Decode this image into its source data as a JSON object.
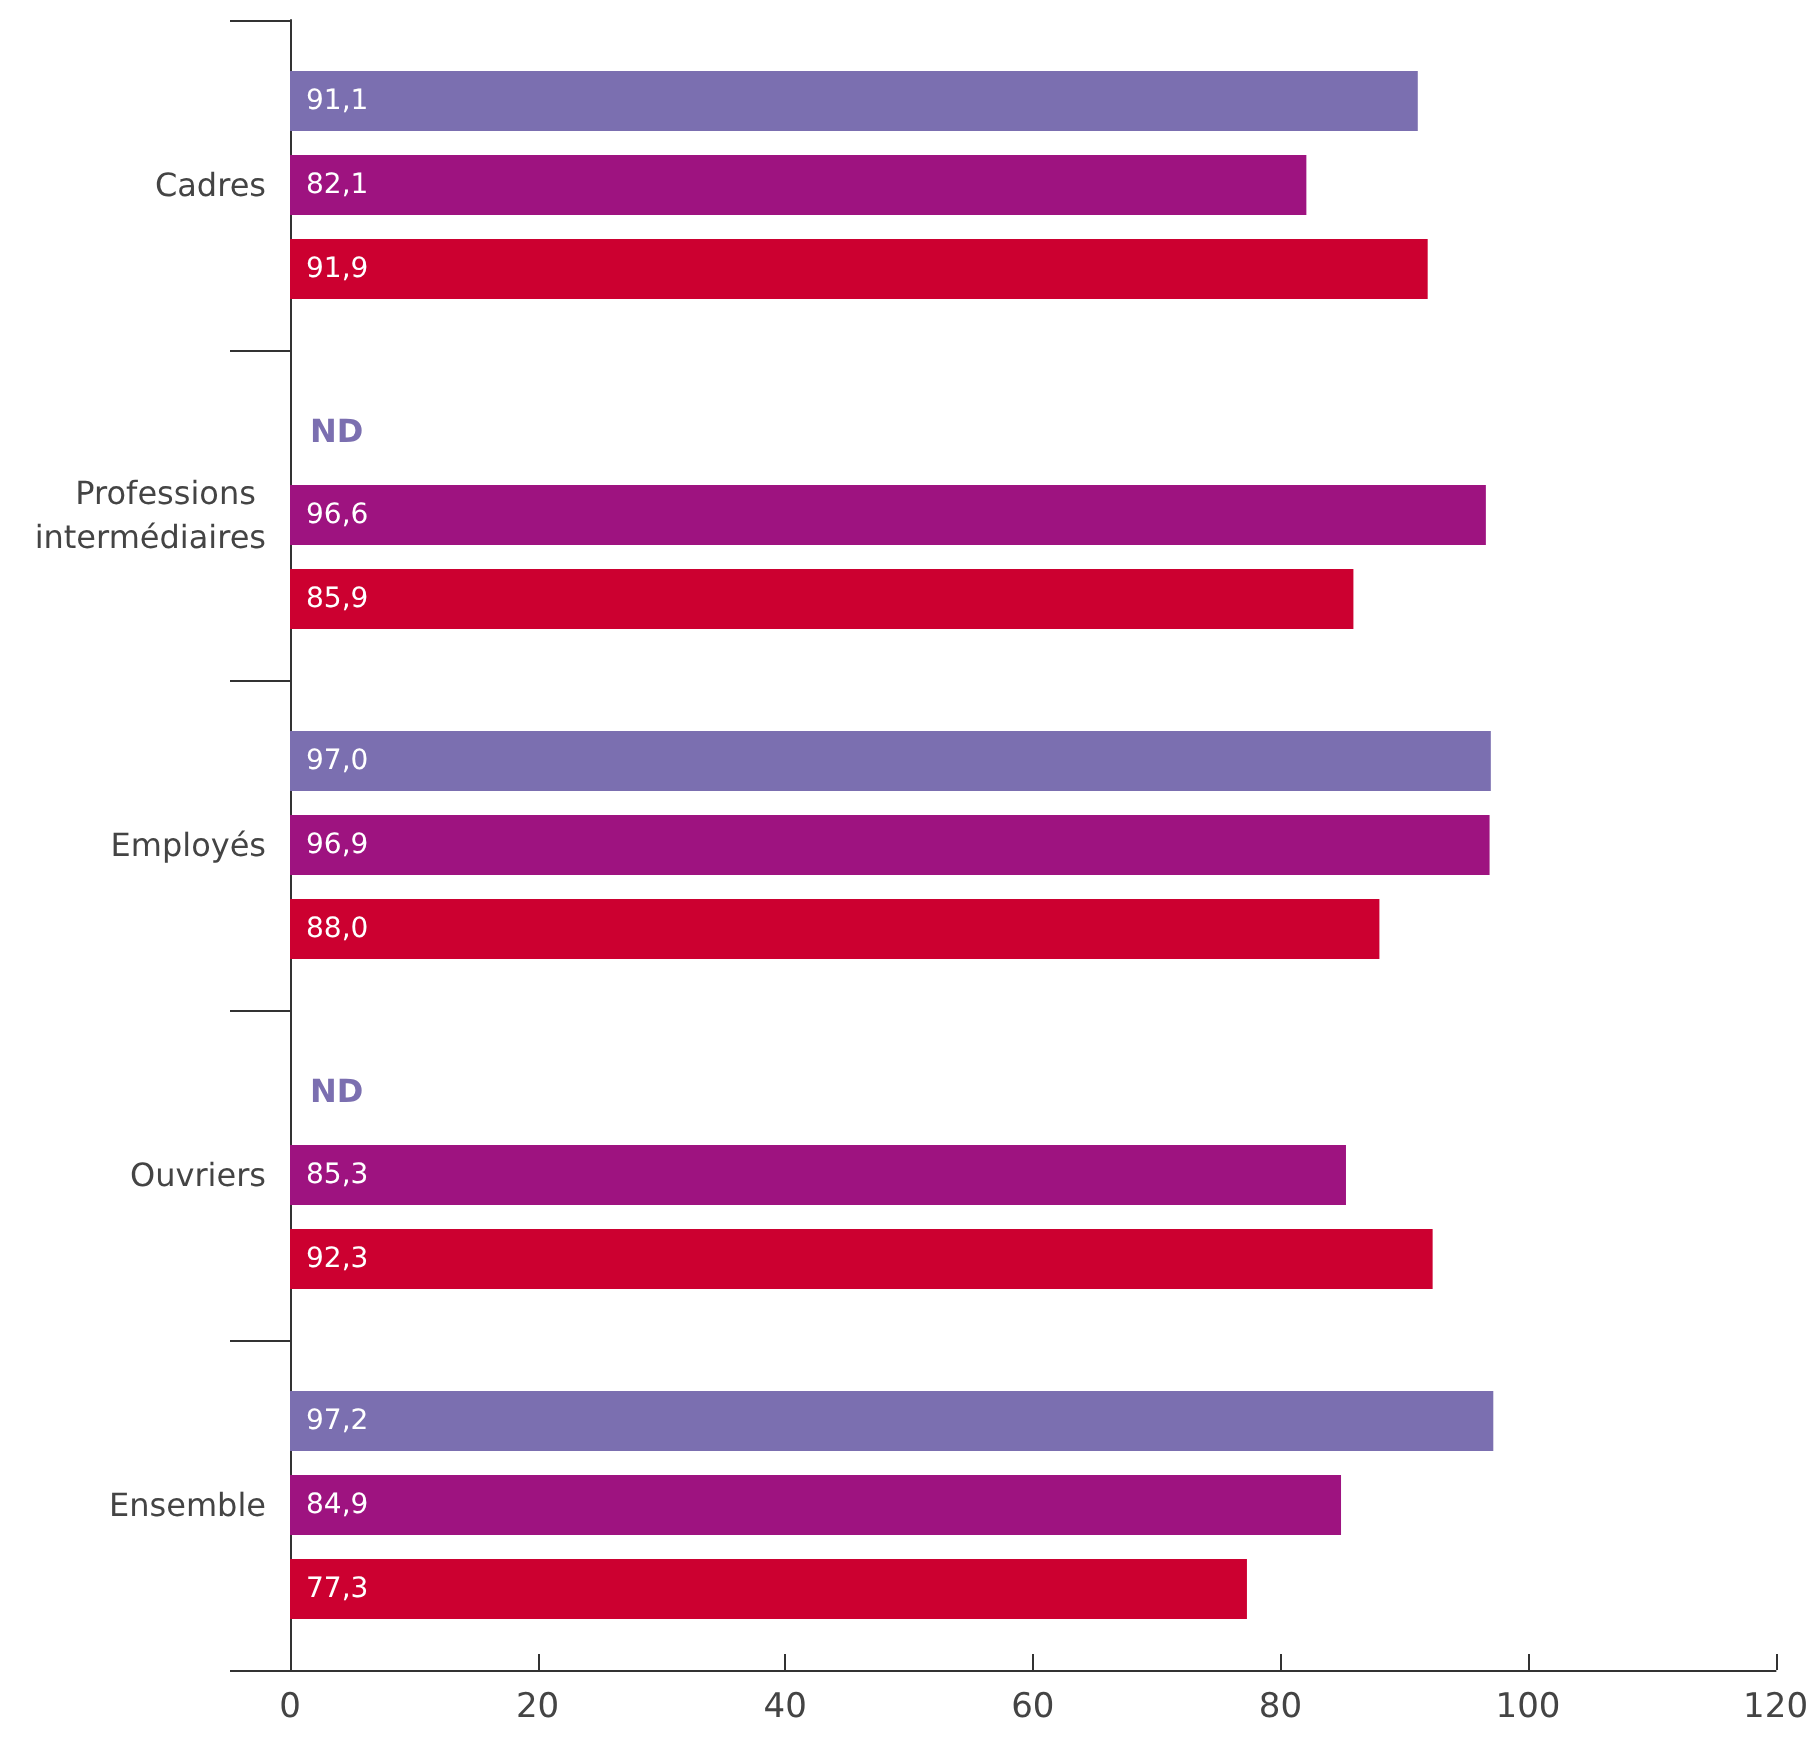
{
  "chart_data": {
    "type": "bar",
    "orientation": "horizontal",
    "categories": [
      "Cadres",
      "Professions intermédiaires",
      "Employés",
      "Ouvriers",
      "Ensemble"
    ],
    "series": [
      {
        "color": "#7b6fb0",
        "values": [
          91.1,
          null,
          97.0,
          null,
          97.2
        ],
        "value_labels": [
          "91,1",
          "ND",
          "97,0",
          "ND",
          "97,2"
        ]
      },
      {
        "color": "#9e1380",
        "values": [
          82.1,
          96.6,
          96.9,
          85.3,
          84.9
        ],
        "value_labels": [
          "82,1",
          "96,6",
          "96,9",
          "85,3",
          "84,9"
        ]
      },
      {
        "color": "#cc0030",
        "values": [
          91.9,
          85.9,
          88.0,
          92.3,
          77.3
        ],
        "value_labels": [
          "91,9",
          "85,9",
          "88,0",
          "92,3",
          "77,3"
        ]
      }
    ],
    "xlim": [
      0,
      120
    ],
    "xticks": [
      0,
      20,
      40,
      60,
      80,
      100,
      120
    ],
    "grid": false
  }
}
